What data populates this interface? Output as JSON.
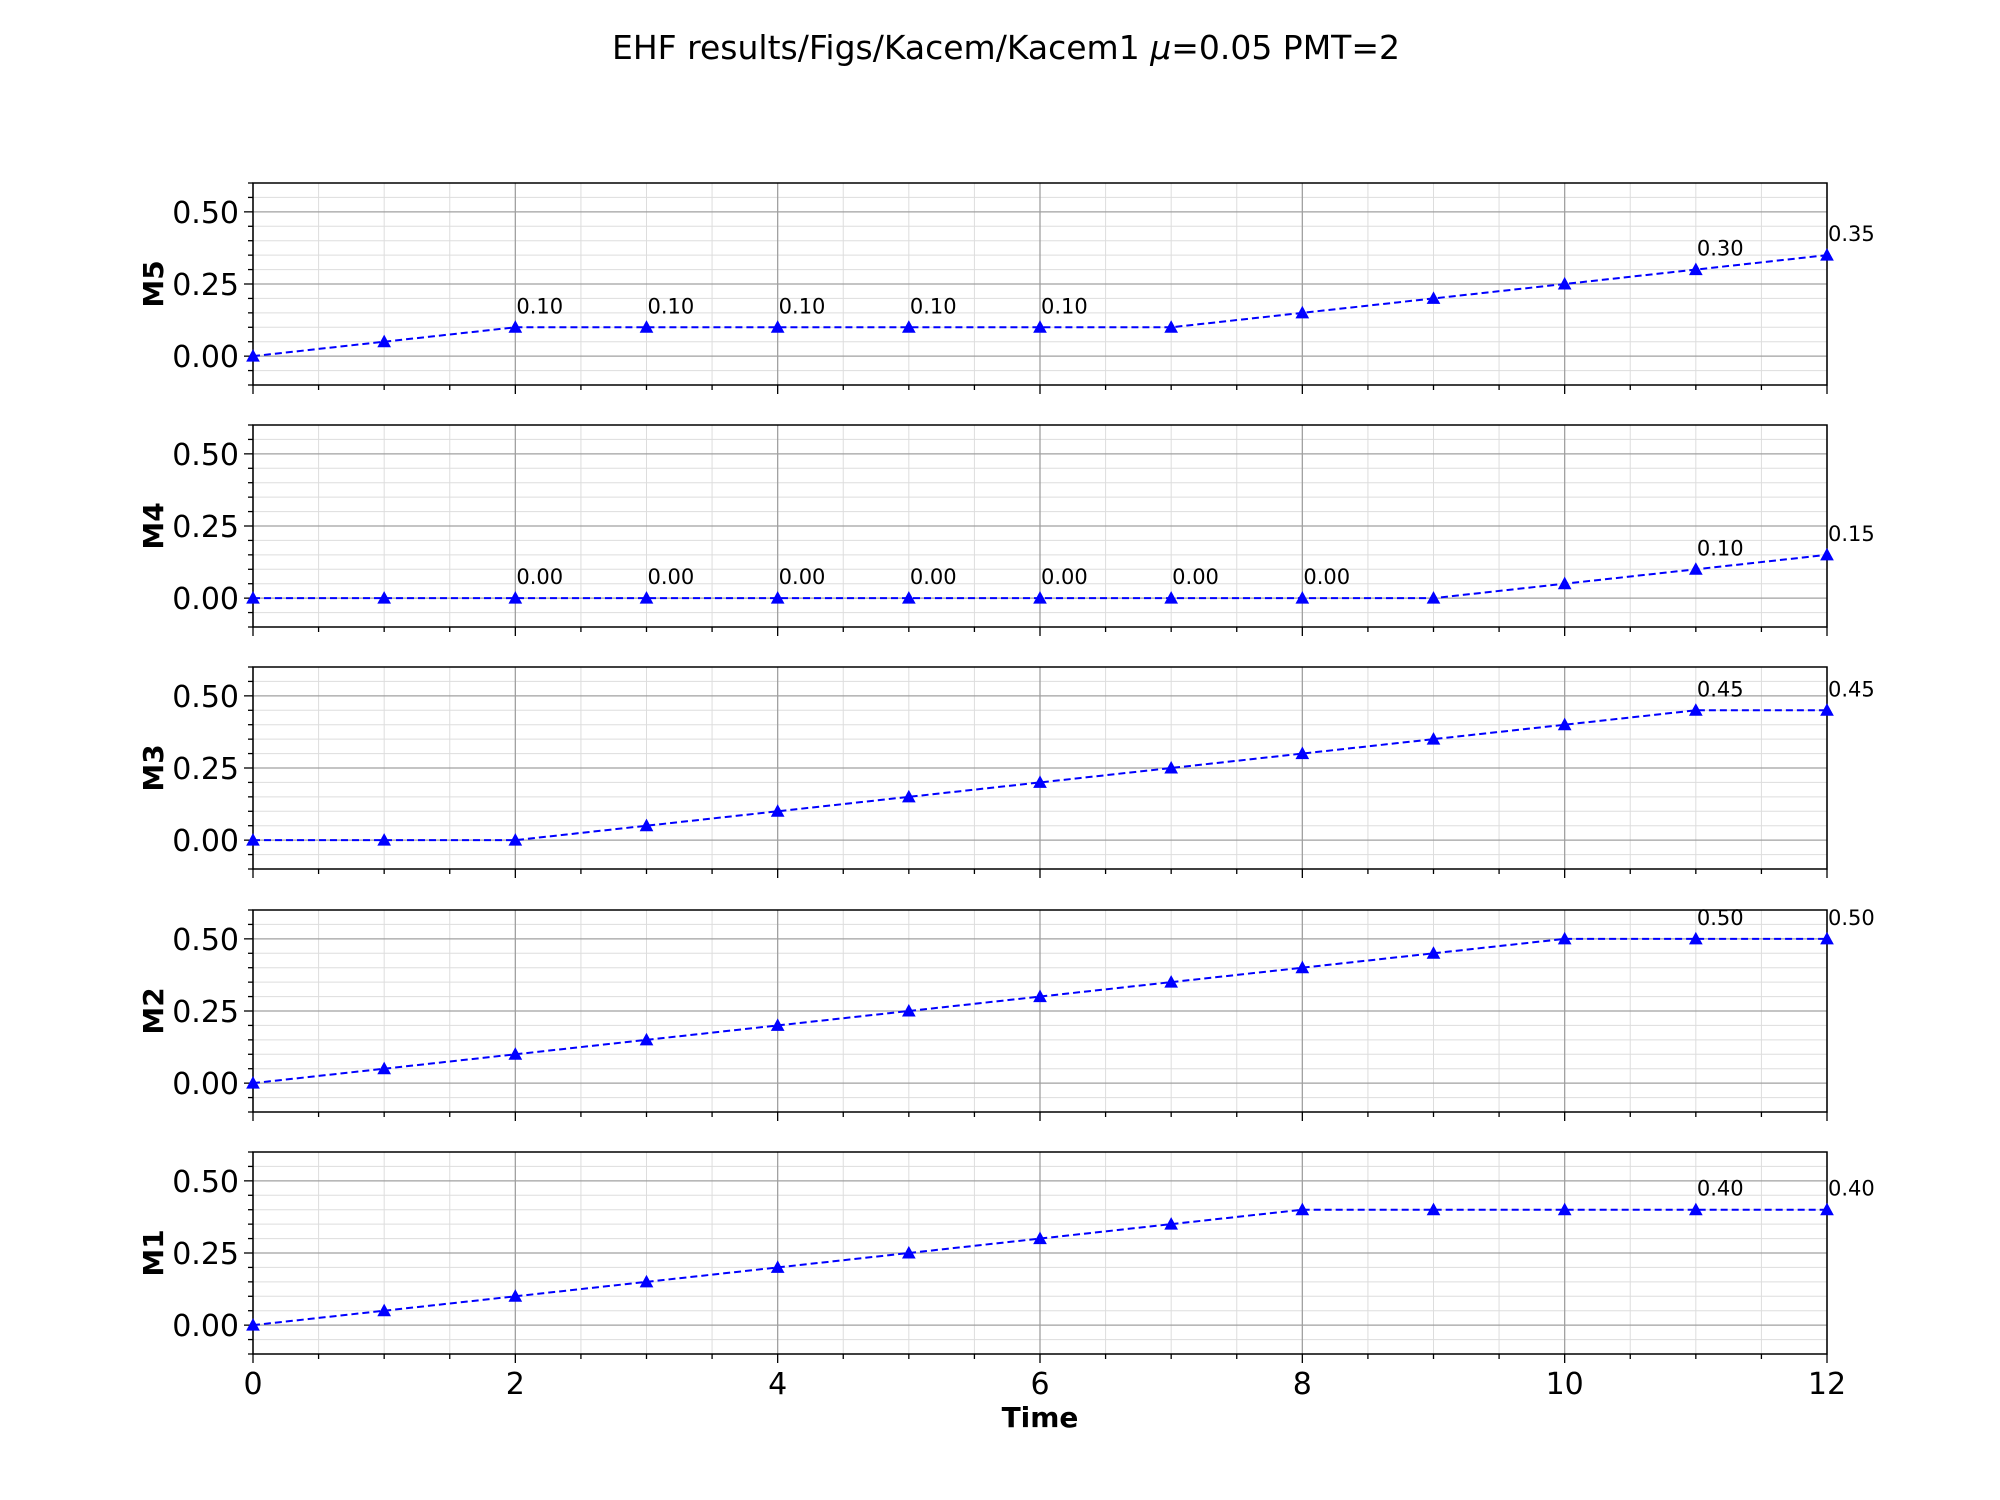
{
  "chart_data": {
    "type": "line",
    "title": "EHF results/Figs/Kacem/Kacem1 μ=0.05 PMT=2",
    "title_parts": [
      "EHF results/Figs/Kacem/Kacem1 ",
      "μ",
      "=0.05 PMT=2"
    ],
    "xlabel": "Time",
    "xlim": [
      0,
      12
    ],
    "ylim": [
      -0.1,
      0.6
    ],
    "xticks": [
      "0",
      "2",
      "4",
      "6",
      "8",
      "10",
      "12"
    ],
    "yticks": [
      "0.00",
      "0.25",
      "0.50"
    ],
    "grid": true,
    "line_style": "dashed",
    "marker": "triangle",
    "colors": {
      "series": "#0000ff",
      "major_grid": "#a0a0a0",
      "minor_grid": "#dddddd"
    },
    "x": [
      0,
      1,
      2,
      3,
      4,
      5,
      6,
      7,
      8,
      9,
      10,
      11,
      12
    ],
    "series": [
      {
        "name": "M5",
        "values": [
          0.0,
          0.05,
          0.1,
          0.1,
          0.1,
          0.1,
          0.1,
          0.1,
          0.15,
          0.2,
          0.25,
          0.3,
          0.35
        ],
        "annotations": [
          {
            "x": 2,
            "y": 0.1,
            "text": "0.10"
          },
          {
            "x": 3,
            "y": 0.1,
            "text": "0.10"
          },
          {
            "x": 4,
            "y": 0.1,
            "text": "0.10"
          },
          {
            "x": 5,
            "y": 0.1,
            "text": "0.10"
          },
          {
            "x": 6,
            "y": 0.1,
            "text": "0.10"
          },
          {
            "x": 11,
            "y": 0.3,
            "text": "0.30"
          },
          {
            "x": 12,
            "y": 0.35,
            "text": "0.35"
          }
        ]
      },
      {
        "name": "M4",
        "values": [
          0.0,
          0.0,
          0.0,
          0.0,
          0.0,
          0.0,
          0.0,
          0.0,
          0.0,
          0.0,
          0.05,
          0.1,
          0.15
        ],
        "annotations": [
          {
            "x": 2,
            "y": 0.0,
            "text": "0.00"
          },
          {
            "x": 3,
            "y": 0.0,
            "text": "0.00"
          },
          {
            "x": 4,
            "y": 0.0,
            "text": "0.00"
          },
          {
            "x": 5,
            "y": 0.0,
            "text": "0.00"
          },
          {
            "x": 6,
            "y": 0.0,
            "text": "0.00"
          },
          {
            "x": 7,
            "y": 0.0,
            "text": "0.00"
          },
          {
            "x": 8,
            "y": 0.0,
            "text": "0.00"
          },
          {
            "x": 11,
            "y": 0.1,
            "text": "0.10"
          },
          {
            "x": 12,
            "y": 0.15,
            "text": "0.15"
          }
        ]
      },
      {
        "name": "M3",
        "values": [
          0.0,
          0.0,
          0.0,
          0.05,
          0.1,
          0.15,
          0.2,
          0.25,
          0.3,
          0.35,
          0.4,
          0.45,
          0.45
        ],
        "annotations": [
          {
            "x": 11,
            "y": 0.45,
            "text": "0.45"
          },
          {
            "x": 12,
            "y": 0.45,
            "text": "0.45"
          }
        ]
      },
      {
        "name": "M2",
        "values": [
          0.0,
          0.05,
          0.1,
          0.15,
          0.2,
          0.25,
          0.3,
          0.35,
          0.4,
          0.45,
          0.5,
          0.5,
          0.5
        ],
        "annotations": [
          {
            "x": 11,
            "y": 0.5,
            "text": "0.50"
          },
          {
            "x": 12,
            "y": 0.5,
            "text": "0.50"
          }
        ]
      },
      {
        "name": "M1",
        "values": [
          0.0,
          0.05,
          0.1,
          0.15,
          0.2,
          0.25,
          0.3,
          0.35,
          0.4,
          0.4,
          0.4,
          0.4,
          0.4
        ],
        "annotations": [
          {
            "x": 11,
            "y": 0.4,
            "text": "0.40"
          },
          {
            "x": 12,
            "y": 0.4,
            "text": "0.40"
          }
        ]
      }
    ]
  }
}
